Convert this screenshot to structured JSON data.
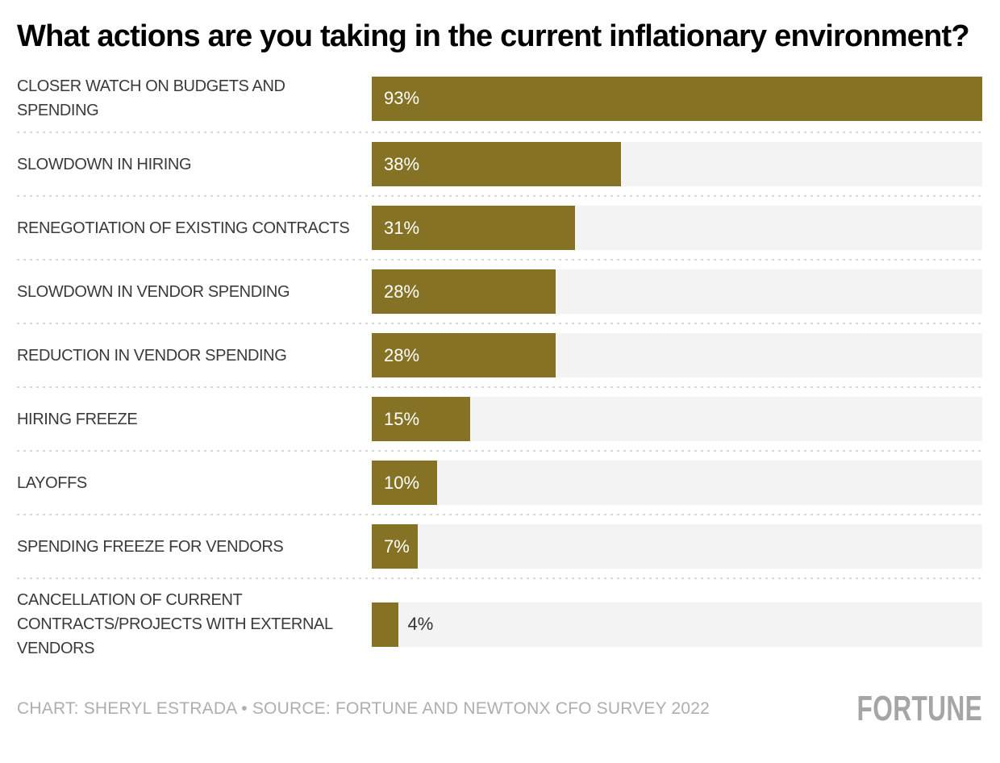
{
  "title": "What actions are you taking in the current inflationary environment?",
  "footer": {
    "credit": "CHART: SHERYL ESTRADA • SOURCE: FORTUNE AND NEWTONX CFO SURVEY 2022",
    "logo_text": "FORTUNE"
  },
  "colors": {
    "background": "#ffffff",
    "title": "#000000",
    "bar": "#857225",
    "track": "#f3f3f3",
    "label": "#3a3a3a",
    "value_inside": "#ffffff",
    "value_outside": "#333333",
    "separator": "#d8d8d8",
    "credit": "#aeaeae",
    "logo": "#a5a5a5"
  },
  "chart_data": {
    "type": "bar",
    "orientation": "horizontal",
    "title": "What actions are you taking in the current inflationary environment?",
    "categories": [
      "CLOSER WATCH ON BUDGETS AND SPENDING",
      "SLOWDOWN IN HIRING",
      "RENEGOTIATION OF EXISTING CONTRACTS",
      "SLOWDOWN IN VENDOR SPENDING",
      "REDUCTION IN VENDOR SPENDING",
      "HIRING FREEZE",
      "LAYOFFS",
      "SPENDING FREEZE FOR VENDORS",
      "CANCELLATION OF CURRENT CONTRACTS/PROJECTS WITH EXTERNAL VENDORS"
    ],
    "values": [
      93,
      38,
      31,
      28,
      28,
      15,
      10,
      7,
      4
    ],
    "value_suffix": "%",
    "scale_max": 93,
    "xlim": [
      0,
      93
    ],
    "grid": false,
    "legend": false,
    "data_label_placement": "inside bar when wide enough, otherwise right of bar",
    "row_separator_style": "dotted"
  }
}
